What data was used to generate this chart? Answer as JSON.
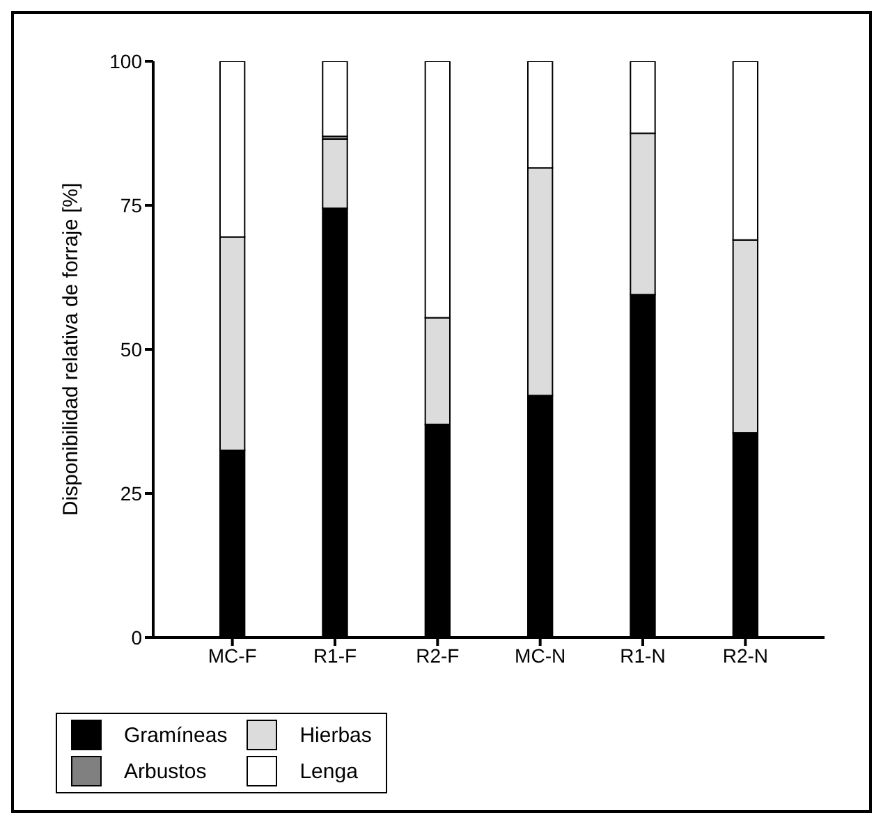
{
  "chart_data": {
    "type": "bar",
    "stacked": true,
    "ylabel": "Disponibilidad relativa de forraje [%]",
    "categories": [
      "MC-F",
      "R1-F",
      "R2-F",
      "MC-N",
      "R1-N",
      "R2-N"
    ],
    "series": [
      {
        "name": "Gramíneas",
        "color": "#000000",
        "values": [
          32.5,
          74.5,
          37,
          42,
          59.5,
          35.5
        ]
      },
      {
        "name": "Hierbas",
        "color": "#dcdcdc",
        "values": [
          37,
          12,
          18.5,
          39.5,
          28,
          33.5
        ]
      },
      {
        "name": "Arbustos",
        "color": "#808080",
        "values": [
          0,
          0.5,
          0,
          0,
          0,
          0
        ]
      },
      {
        "name": "Lenga",
        "color": "#ffffff",
        "values": [
          30.5,
          13,
          44.5,
          18.5,
          12.5,
          31
        ]
      }
    ],
    "ylim": [
      0,
      100
    ],
    "yticks": [
      0,
      25,
      50,
      75,
      100
    ],
    "grid": false,
    "legend": "bottom"
  }
}
